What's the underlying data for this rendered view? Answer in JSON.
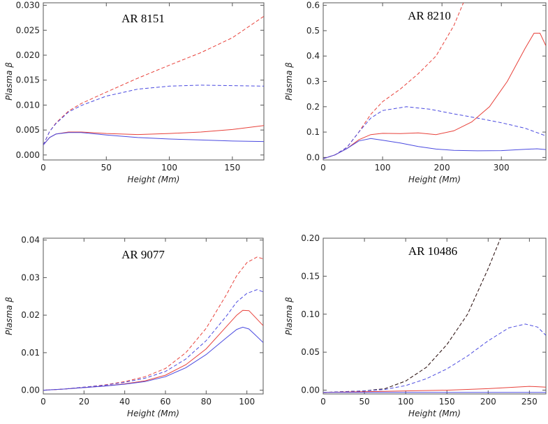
{
  "chart_data": [
    {
      "type": "line",
      "title": "AR 8151",
      "xlabel": "Height (Mm)",
      "ylabel": "Plasma β",
      "xlim": [
        0,
        175
      ],
      "ylim": [
        -0.001,
        0.0305
      ],
      "xticks": [
        0,
        50,
        100,
        150
      ],
      "xtick_labels": [
        "0",
        "50",
        "100",
        "150"
      ],
      "yticks": [
        0,
        0.005,
        0.01,
        0.015,
        0.02,
        0.025,
        0.03
      ],
      "ytick_labels": [
        "0.000",
        "0.005",
        "0.010",
        "0.015",
        "0.020",
        "0.025",
        "0.030"
      ],
      "series": [
        {
          "color": "#e8413a",
          "dash": true,
          "x": [
            0,
            5,
            10,
            20,
            30,
            50,
            75,
            100,
            125,
            150,
            175
          ],
          "y": [
            0.002,
            0.0047,
            0.0064,
            0.0088,
            0.0103,
            0.0126,
            0.0154,
            0.018,
            0.0205,
            0.0235,
            0.0278
          ]
        },
        {
          "color": "#4a4ae0",
          "dash": true,
          "x": [
            0,
            5,
            10,
            20,
            30,
            50,
            75,
            100,
            125,
            150,
            175
          ],
          "y": [
            0.002,
            0.0047,
            0.0063,
            0.0086,
            0.0099,
            0.0118,
            0.0132,
            0.0138,
            0.014,
            0.0139,
            0.0138
          ]
        },
        {
          "color": "#e8413a",
          "dash": false,
          "x": [
            0,
            5,
            10,
            20,
            30,
            50,
            75,
            100,
            125,
            150,
            175
          ],
          "y": [
            0.002,
            0.0035,
            0.0042,
            0.0046,
            0.0046,
            0.0043,
            0.0041,
            0.0043,
            0.0046,
            0.0051,
            0.0059
          ]
        },
        {
          "color": "#4a4ae0",
          "dash": false,
          "x": [
            0,
            5,
            10,
            20,
            30,
            50,
            75,
            100,
            125,
            150,
            175
          ],
          "y": [
            0.002,
            0.0035,
            0.0042,
            0.0045,
            0.0045,
            0.004,
            0.0035,
            0.0032,
            0.003,
            0.0028,
            0.0027
          ]
        }
      ]
    },
    {
      "type": "line",
      "title": "AR 8210",
      "xlabel": "Height (Mm)",
      "ylabel": "Plasma β",
      "xlim": [
        0,
        375
      ],
      "ylim": [
        -0.01,
        0.61
      ],
      "xticks": [
        0,
        100,
        200,
        300
      ],
      "xtick_labels": [
        "0",
        "100",
        "200",
        "300"
      ],
      "yticks": [
        0,
        0.1,
        0.2,
        0.3,
        0.4,
        0.5,
        0.6
      ],
      "ytick_labels": [
        "0.0",
        "0.1",
        "0.2",
        "0.3",
        "0.4",
        "0.5",
        "0.6"
      ],
      "series": [
        {
          "color": "#e8413a",
          "dash": true,
          "x": [
            0,
            20,
            40,
            60,
            80,
            100,
            130,
            160,
            190,
            220,
            236
          ],
          "y": [
            -0.005,
            0.01,
            0.04,
            0.1,
            0.17,
            0.22,
            0.27,
            0.33,
            0.4,
            0.52,
            0.61
          ]
        },
        {
          "color": "#4a4ae0",
          "dash": true,
          "x": [
            0,
            20,
            40,
            60,
            80,
            100,
            140,
            180,
            220,
            260,
            300,
            340,
            375
          ],
          "y": [
            -0.005,
            0.01,
            0.04,
            0.1,
            0.155,
            0.185,
            0.2,
            0.19,
            0.172,
            0.155,
            0.137,
            0.115,
            0.085
          ]
        },
        {
          "color": "#e8413a",
          "dash": false,
          "x": [
            0,
            20,
            40,
            60,
            80,
            100,
            130,
            160,
            190,
            220,
            250,
            280,
            310,
            340,
            355,
            365,
            375
          ],
          "y": [
            -0.005,
            0.01,
            0.035,
            0.07,
            0.09,
            0.095,
            0.094,
            0.097,
            0.09,
            0.105,
            0.14,
            0.2,
            0.3,
            0.43,
            0.49,
            0.49,
            0.44
          ]
        },
        {
          "color": "#4a4ae0",
          "dash": false,
          "x": [
            0,
            20,
            40,
            60,
            80,
            100,
            130,
            160,
            190,
            220,
            260,
            300,
            340,
            360,
            375
          ],
          "y": [
            -0.005,
            0.01,
            0.035,
            0.065,
            0.075,
            0.068,
            0.057,
            0.043,
            0.033,
            0.028,
            0.026,
            0.027,
            0.032,
            0.034,
            0.031
          ]
        }
      ]
    },
    {
      "type": "line",
      "title": "AR 9077",
      "xlabel": "Height (Mm)",
      "ylabel": "Plasma β",
      "xlim": [
        0,
        108
      ],
      "ylim": [
        -0.001,
        0.0405
      ],
      "xticks": [
        0,
        20,
        40,
        60,
        80,
        100
      ],
      "xtick_labels": [
        "0",
        "20",
        "40",
        "60",
        "80",
        "100"
      ],
      "yticks": [
        0,
        0.01,
        0.02,
        0.03,
        0.04
      ],
      "ytick_labels": [
        "0.00",
        "0.01",
        "0.02",
        "0.03",
        "0.04"
      ],
      "series": [
        {
          "color": "#e8413a",
          "dash": true,
          "x": [
            0,
            10,
            20,
            30,
            40,
            50,
            60,
            70,
            80,
            90,
            95,
            100,
            105,
            108
          ],
          "y": [
            0,
            0.0003,
            0.0008,
            0.0014,
            0.0023,
            0.0036,
            0.0058,
            0.01,
            0.0165,
            0.0255,
            0.0305,
            0.034,
            0.0355,
            0.035
          ]
        },
        {
          "color": "#4a4ae0",
          "dash": true,
          "x": [
            0,
            10,
            20,
            30,
            40,
            50,
            60,
            70,
            80,
            90,
            95,
            100,
            105,
            108
          ],
          "y": [
            0,
            0.0003,
            0.0008,
            0.0013,
            0.0021,
            0.0032,
            0.005,
            0.0083,
            0.0132,
            0.0198,
            0.0235,
            0.0258,
            0.0268,
            0.0262
          ]
        },
        {
          "color": "#e8413a",
          "dash": false,
          "x": [
            0,
            10,
            20,
            30,
            40,
            50,
            60,
            70,
            80,
            90,
            95,
            98,
            101,
            104,
            108
          ],
          "y": [
            0,
            0.0003,
            0.0007,
            0.0011,
            0.0017,
            0.0025,
            0.004,
            0.0068,
            0.011,
            0.017,
            0.02,
            0.0213,
            0.0212,
            0.0195,
            0.0172
          ]
        },
        {
          "color": "#4a4ae0",
          "dash": false,
          "x": [
            0,
            10,
            20,
            30,
            40,
            50,
            60,
            70,
            80,
            90,
            95,
            98,
            101,
            104,
            108
          ],
          "y": [
            0,
            0.0003,
            0.0007,
            0.0011,
            0.0016,
            0.0023,
            0.0036,
            0.006,
            0.0095,
            0.014,
            0.0162,
            0.0168,
            0.0163,
            0.0148,
            0.0127
          ]
        }
      ]
    },
    {
      "type": "line",
      "title": "AR 10486",
      "xlabel": "Height (Mm)",
      "ylabel": "Plasma β",
      "xlim": [
        0,
        270
      ],
      "ylim": [
        -0.005,
        0.2
      ],
      "xticks": [
        0,
        50,
        100,
        150,
        200,
        250
      ],
      "xtick_labels": [
        "0",
        "50",
        "100",
        "150",
        "200",
        "250"
      ],
      "yticks": [
        0,
        0.05,
        0.1,
        0.15,
        0.2
      ],
      "ytick_labels": [
        "0.00",
        "0.05",
        "0.10",
        "0.15",
        "0.20"
      ],
      "series": [
        {
          "color": "#e8413a",
          "dash": true,
          "x": [
            0,
            25,
            50,
            75,
            100,
            125,
            150,
            175,
            200,
            215
          ],
          "y": [
            -0.003,
            -0.002,
            -0.001,
            0.002,
            0.012,
            0.03,
            0.06,
            0.1,
            0.16,
            0.2
          ]
        },
        {
          "color": "#222222",
          "dash": true,
          "x": [
            0,
            25,
            50,
            75,
            100,
            125,
            150,
            175,
            200,
            215
          ],
          "y": [
            -0.003,
            -0.002,
            -0.001,
            0.002,
            0.012,
            0.03,
            0.06,
            0.1,
            0.16,
            0.2
          ]
        },
        {
          "color": "#4a4ae0",
          "dash": true,
          "x": [
            0,
            25,
            50,
            75,
            100,
            125,
            150,
            175,
            200,
            225,
            245,
            260,
            270
          ],
          "y": [
            -0.003,
            -0.002,
            -0.001,
            0.001,
            0.006,
            0.015,
            0.028,
            0.045,
            0.065,
            0.082,
            0.087,
            0.083,
            0.072
          ]
        },
        {
          "color": "#e8413a",
          "dash": false,
          "x": [
            0,
            50,
            100,
            150,
            200,
            250,
            270
          ],
          "y": [
            -0.003,
            -0.002,
            -0.001,
            0.0,
            0.002,
            0.005,
            0.004
          ]
        },
        {
          "color": "#4a4ae0",
          "dash": false,
          "x": [
            0,
            50,
            100,
            150,
            200,
            250,
            270
          ],
          "y": [
            -0.003,
            -0.003,
            -0.003,
            -0.003,
            -0.003,
            -0.003,
            -0.003
          ]
        }
      ]
    }
  ]
}
